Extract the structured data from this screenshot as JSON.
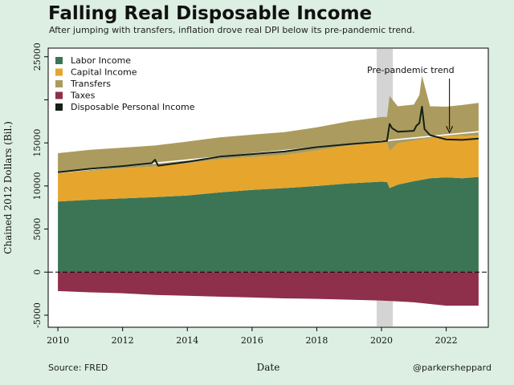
{
  "header": {
    "title": "Falling Real Disposable Income",
    "subtitle": "After jumping with transfers, inflation drove real DPI below its pre-pandemic trend."
  },
  "footer": {
    "source": "Source: FRED",
    "handle": "@parkersheppard"
  },
  "colors": {
    "background": "#dcefe2",
    "labor": "#3c7555",
    "capital": "#e6a52c",
    "transfers": "#ab9b5e",
    "taxes": "#8e2f4c",
    "dpi": "#151f17",
    "trend": "#ffffff",
    "recession": "#d4d4d4"
  },
  "chart_data": {
    "type": "area",
    "xlabel": "Date",
    "ylabel": "Chained 2012 Dollars (Bil.)",
    "xlim": [
      2009.7,
      2023.3
    ],
    "ylim": [
      -6400,
      26000
    ],
    "x_ticks": [
      "2010",
      "2012",
      "2014",
      "2016",
      "2018",
      "2020",
      "2022"
    ],
    "y_ticks": [
      -5000,
      0,
      5000,
      10000,
      15000,
      20000,
      25000
    ],
    "y_tick_labels": [
      "-5000",
      "0",
      "5000",
      "10000",
      "15000",
      "",
      "25000"
    ],
    "grid": false,
    "legend_position": "top-left",
    "shaded_region": [
      2019.85,
      2020.35
    ],
    "annotation": {
      "text": "Pre-pandemic trend",
      "x": 2022.1,
      "y": 16200
    },
    "series": [
      {
        "name": "Labor Income",
        "x": [
          2010.0,
          2011.0,
          2012.0,
          2013.0,
          2014.0,
          2015.0,
          2016.0,
          2017.0,
          2018.0,
          2019.0,
          2020.0,
          2020.17,
          2020.25,
          2020.5,
          2021.0,
          2021.5,
          2022.0,
          2022.5,
          2023.0
        ],
        "values": [
          8200,
          8400,
          8550,
          8700,
          8900,
          9250,
          9550,
          9750,
          10000,
          10300,
          10500,
          10450,
          9750,
          10150,
          10550,
          10900,
          11000,
          10900,
          11050
        ]
      },
      {
        "name": "Capital Income",
        "x": [
          2010.0,
          2011.0,
          2012.0,
          2013.0,
          2014.0,
          2015.0,
          2016.0,
          2017.0,
          2018.0,
          2019.0,
          2020.0,
          2020.17,
          2020.25,
          2020.5,
          2021.0,
          2021.5,
          2022.0,
          2022.5,
          2023.0
        ],
        "values": [
          3300,
          3350,
          3500,
          3550,
          3750,
          3850,
          3800,
          3850,
          4100,
          4400,
          4600,
          4600,
          4300,
          4800,
          4700,
          4650,
          4800,
          4900,
          4800
        ]
      },
      {
        "name": "Transfers",
        "x": [
          2010.0,
          2011.0,
          2012.0,
          2013.0,
          2014.0,
          2015.0,
          2016.0,
          2017.0,
          2018.0,
          2019.0,
          2020.0,
          2020.17,
          2020.25,
          2020.5,
          2021.0,
          2021.17,
          2021.25,
          2021.5,
          2022.0,
          2022.5,
          2023.0
        ],
        "values": [
          2300,
          2450,
          2400,
          2450,
          2500,
          2550,
          2600,
          2650,
          2700,
          2800,
          2900,
          2950,
          6400,
          4300,
          4200,
          5200,
          7400,
          3700,
          3400,
          3600,
          3800
        ]
      },
      {
        "name": "Taxes",
        "x": [
          2010.0,
          2011.0,
          2012.0,
          2013.0,
          2014.0,
          2015.0,
          2016.0,
          2017.0,
          2018.0,
          2019.0,
          2020.0,
          2020.25,
          2020.5,
          2021.0,
          2021.5,
          2022.0,
          2022.5,
          2023.0
        ],
        "values": [
          -2200,
          -2350,
          -2450,
          -2650,
          -2750,
          -2850,
          -2950,
          -3050,
          -3100,
          -3200,
          -3300,
          -3350,
          -3400,
          -3500,
          -3700,
          -3900,
          -3900,
          -3900
        ]
      },
      {
        "name": "Disposable Personal Income",
        "x": [
          2010.0,
          2011.0,
          2012.0,
          2012.9,
          2013.0,
          2013.1,
          2014.0,
          2015.0,
          2016.0,
          2017.0,
          2018.0,
          2019.0,
          2020.0,
          2020.17,
          2020.25,
          2020.33,
          2020.5,
          2021.0,
          2021.08,
          2021.17,
          2021.25,
          2021.33,
          2021.5,
          2022.0,
          2022.5,
          2023.0
        ],
        "values": [
          11600,
          12000,
          12300,
          12650,
          13050,
          12350,
          12800,
          13400,
          13700,
          14000,
          14500,
          14850,
          15150,
          15250,
          17200,
          16700,
          16300,
          16400,
          17000,
          17300,
          19200,
          16600,
          15900,
          15400,
          15350,
          15500
        ]
      },
      {
        "name": "Pre-pandemic trend",
        "x": [
          2010.0,
          2020.25,
          2023.0
        ],
        "values": [
          11550,
          15300,
          16300
        ]
      }
    ],
    "legend": [
      "Labor Income",
      "Capital Income",
      "Transfers",
      "Taxes",
      "Disposable Personal Income"
    ]
  }
}
